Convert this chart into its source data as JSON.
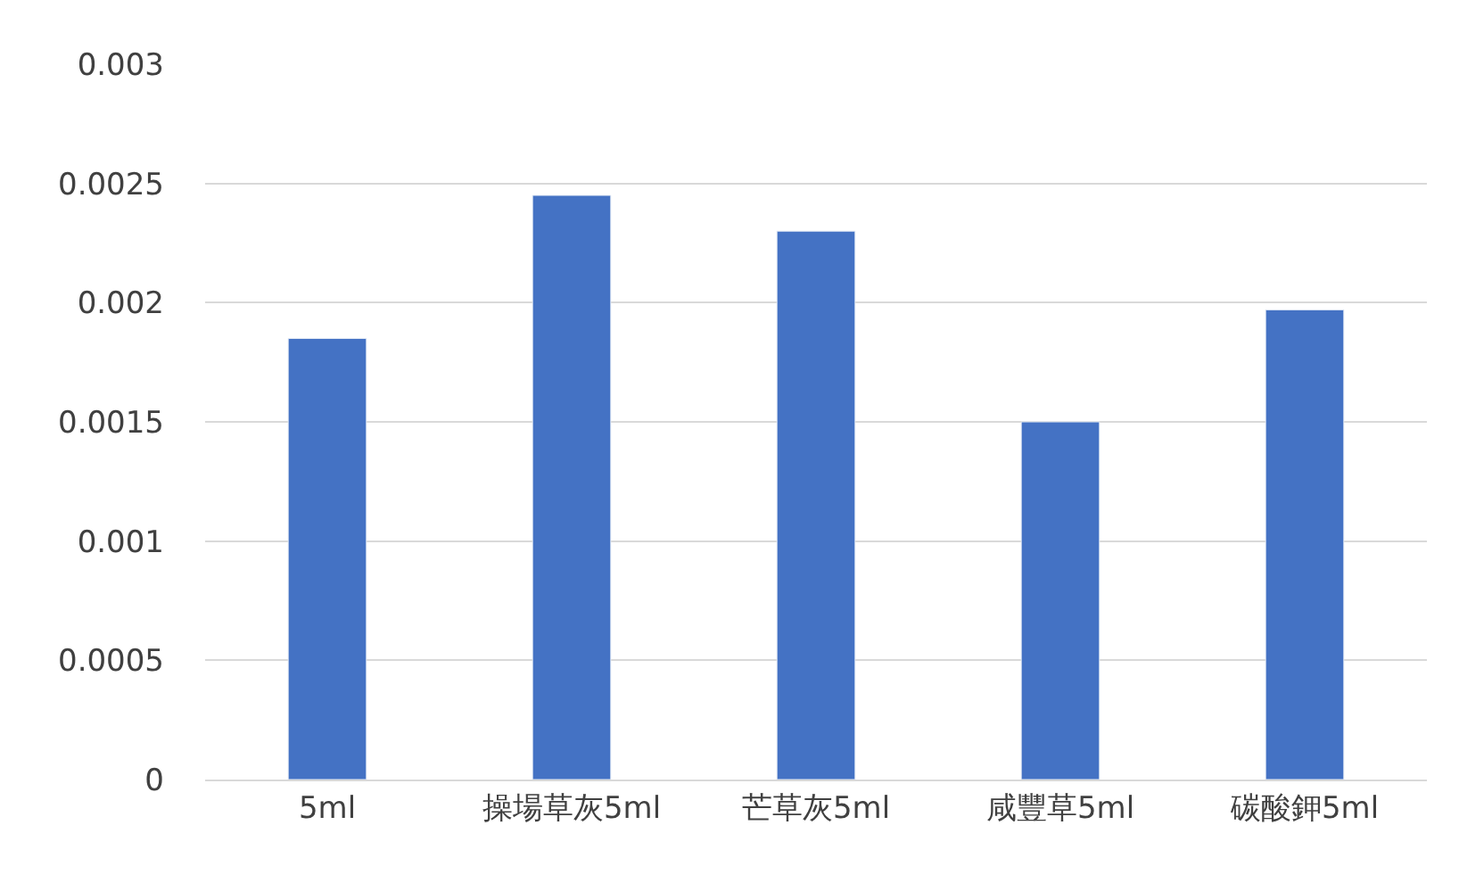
{
  "chart_data": {
    "type": "bar",
    "categories": [
      "5ml",
      "操場草灰5ml",
      "芒草灰5ml",
      "咸豐草5ml",
      "碳酸鉀5ml"
    ],
    "values": [
      0.00185,
      0.00245,
      0.0023,
      0.0015,
      0.00197
    ],
    "color": "#4472c4",
    "ylim": [
      0,
      0.003
    ],
    "yticks": [
      0,
      0.0005,
      0.001,
      0.0015,
      0.002,
      0.0025,
      0.003
    ],
    "grid": "y"
  }
}
